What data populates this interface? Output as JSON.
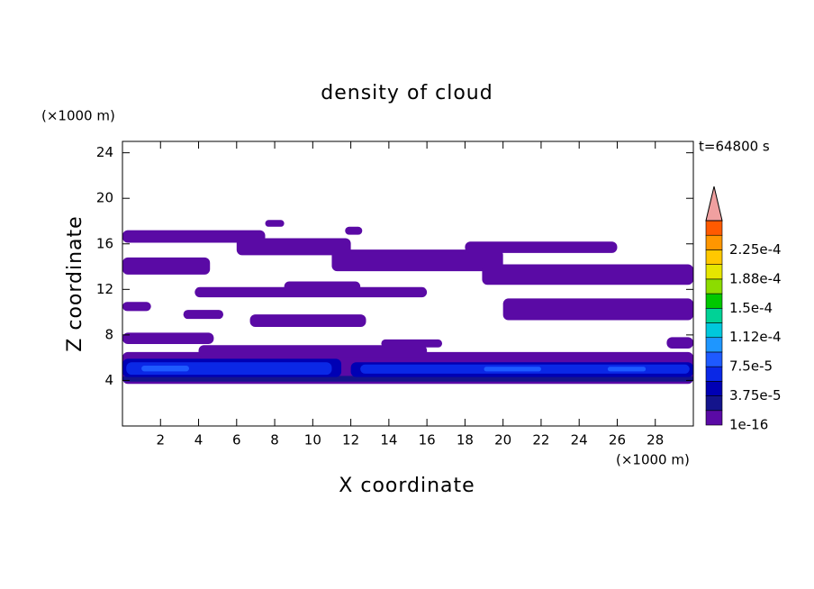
{
  "chart_data": {
    "type": "contour",
    "title": "density of cloud",
    "x_label": "X coordinate",
    "y_label": "Z coordinate",
    "x_unit": "(×1000 m)",
    "y_unit": "(×1000 m)",
    "time_label": "t=64800 s",
    "xlim": [
      0,
      30
    ],
    "ylim": [
      0,
      25
    ],
    "xticks": [
      2,
      4,
      6,
      8,
      10,
      12,
      14,
      16,
      18,
      20,
      22,
      24,
      26,
      28
    ],
    "yticks": [
      4,
      8,
      12,
      16,
      20,
      24
    ],
    "levels": [
      1e-16,
      1.875e-05,
      3.75e-05,
      5.625e-05,
      7.5e-05,
      9.375e-05,
      0.0001125,
      0.00013125,
      0.00015,
      0.00016875,
      0.0001875,
      0.00020625,
      0.000225,
      0.00024375,
      0.0002625
    ],
    "colors": [
      "#5a0aa5",
      "#14148c",
      "#0000b4",
      "#0a28e6",
      "#1e5aff",
      "#1e96ff",
      "#00c8dc",
      "#00d296",
      "#00c800",
      "#8cdc00",
      "#e6e600",
      "#ffc800",
      "#ff9600",
      "#ff5a00"
    ],
    "overflow_color": "#f0a0a0",
    "colorbar_ticks": [
      1e-16,
      {
        "value": 3.75e-05,
        "label": "3.75e-5"
      },
      {
        "value": 7.5e-05,
        "label": "7.5e-5"
      },
      {
        "value": 0.0001125,
        "label": "1.12e-4"
      },
      {
        "value": 0.00015,
        "label": "1.5e-4"
      },
      {
        "value": 0.0001875,
        "label": "1.88e-4"
      },
      {
        "value": 0.000225,
        "label": "2.25e-4"
      }
    ],
    "regions": [
      {
        "level": 0,
        "x": [
          0,
          30
        ],
        "z": [
          3.7,
          6.5
        ]
      },
      {
        "level": 0,
        "x": [
          4,
          16
        ],
        "z": [
          6.0,
          7.1
        ]
      },
      {
        "level": 0,
        "x": [
          0,
          7.5
        ],
        "z": [
          16.1,
          17.2
        ]
      },
      {
        "level": 0,
        "x": [
          0,
          4.6
        ],
        "z": [
          13.3,
          14.8
        ]
      },
      {
        "level": 0,
        "x": [
          6,
          12
        ],
        "z": [
          15.0,
          16.5
        ]
      },
      {
        "level": 0,
        "x": [
          11,
          20
        ],
        "z": [
          13.6,
          15.5
        ]
      },
      {
        "level": 0,
        "x": [
          18,
          26
        ],
        "z": [
          15.2,
          16.2
        ]
      },
      {
        "level": 0,
        "x": [
          18.9,
          30
        ],
        "z": [
          12.4,
          14.2
        ]
      },
      {
        "level": 0,
        "x": [
          3.8,
          16
        ],
        "z": [
          11.3,
          12.2
        ]
      },
      {
        "level": 0,
        "x": [
          8.5,
          12.5
        ],
        "z": [
          11.8,
          12.7
        ]
      },
      {
        "level": 0,
        "x": [
          0,
          1.5
        ],
        "z": [
          10.1,
          10.9
        ]
      },
      {
        "level": 0,
        "x": [
          3.2,
          5.3
        ],
        "z": [
          9.4,
          10.2
        ]
      },
      {
        "level": 0,
        "x": [
          6.7,
          12.8
        ],
        "z": [
          8.7,
          9.8
        ]
      },
      {
        "level": 0,
        "x": [
          20,
          30
        ],
        "z": [
          9.3,
          11.2
        ]
      },
      {
        "level": 0,
        "x": [
          0,
          4.8
        ],
        "z": [
          7.2,
          8.2
        ]
      },
      {
        "level": 0,
        "x": [
          13.6,
          16.8
        ],
        "z": [
          6.9,
          7.6
        ]
      },
      {
        "level": 0,
        "x": [
          28.6,
          30
        ],
        "z": [
          6.8,
          7.8
        ]
      },
      {
        "level": 0,
        "x": [
          7.5,
          8.5
        ],
        "z": [
          17.5,
          18.1
        ]
      },
      {
        "level": 0,
        "x": [
          11.7,
          12.6
        ],
        "z": [
          16.8,
          17.5
        ]
      },
      {
        "level": 1,
        "x": [
          0,
          30
        ],
        "z": [
          3.9,
          4.4
        ]
      },
      {
        "level": 2,
        "x": [
          0,
          11.5
        ],
        "z": [
          4.3,
          5.9
        ]
      },
      {
        "level": 2,
        "x": [
          12,
          30
        ],
        "z": [
          4.3,
          5.6
        ]
      },
      {
        "level": 3,
        "x": [
          0.2,
          11
        ],
        "z": [
          4.5,
          5.6
        ]
      },
      {
        "level": 3,
        "x": [
          12.5,
          29.8
        ],
        "z": [
          4.6,
          5.4
        ]
      },
      {
        "level": 4,
        "x": [
          1,
          3.5
        ],
        "z": [
          4.8,
          5.3
        ]
      },
      {
        "level": 4,
        "x": [
          19,
          22
        ],
        "z": [
          4.8,
          5.2
        ]
      },
      {
        "level": 4,
        "x": [
          25.5,
          27.5
        ],
        "z": [
          4.8,
          5.2
        ]
      }
    ]
  }
}
